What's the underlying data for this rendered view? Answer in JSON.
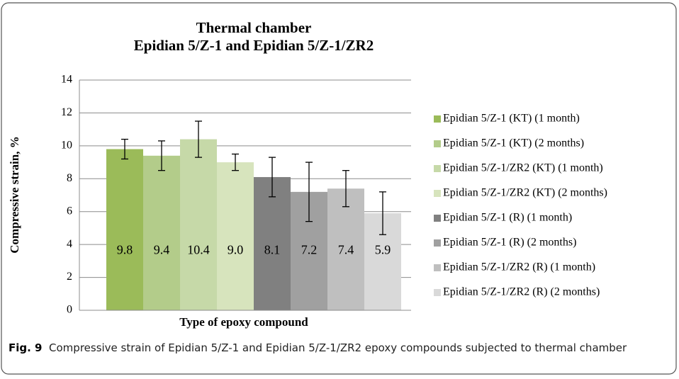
{
  "chart_data": {
    "type": "bar",
    "title": "Thermal chamber",
    "subtitle": "Epidian 5/Z-1 and Epidian 5/Z-1/ZR2",
    "x_label": "Type of epoxy compound",
    "y_label": "Compressive strain, %",
    "ylim": [
      0,
      14
    ],
    "yticks": [
      0,
      2,
      4,
      6,
      8,
      10,
      12,
      14
    ],
    "grid": true,
    "legend": "right",
    "series": [
      {
        "name": "Epidian 5/Z-1 (KT) (1 month)",
        "color": "#9bbb59",
        "values": [
          9.8
        ],
        "value_labels": [
          "9.8"
        ],
        "errors": [
          0.6
        ]
      },
      {
        "name": "Epidian 5/Z-1 (KT) (2 months)",
        "color": "#b3cc8a",
        "values": [
          9.4
        ],
        "value_labels": [
          "9.4"
        ],
        "errors": [
          0.9
        ]
      },
      {
        "name": "Epidian 5/Z-1/ZR2 (KT) (1 month)",
        "color": "#c6d9a8",
        "values": [
          10.4
        ],
        "value_labels": [
          "10.4"
        ],
        "errors": [
          1.1
        ]
      },
      {
        "name": "Epidian 5/Z-1/ZR2 (KT) (2 months)",
        "color": "#d7e4bd",
        "values": [
          9.0
        ],
        "value_labels": [
          "9.0"
        ],
        "errors": [
          0.5
        ]
      },
      {
        "name": "Epidian 5/Z-1 (R) (1 month)",
        "color": "#808080",
        "values": [
          8.1
        ],
        "value_labels": [
          "8.1"
        ],
        "errors": [
          1.2
        ]
      },
      {
        "name": "Epidian 5/Z-1 (R) (2 months)",
        "color": "#a0a0a0",
        "values": [
          7.2
        ],
        "value_labels": [
          "7.2"
        ],
        "errors": [
          1.8
        ]
      },
      {
        "name": "Epidian 5/Z-1/ZR2 (R) (1 month)",
        "color": "#bfbfbf",
        "values": [
          7.4
        ],
        "value_labels": [
          "7.4"
        ],
        "errors": [
          1.1
        ]
      },
      {
        "name": "Epidian 5/Z-1/ZR2 (R) (2 months)",
        "color": "#d9d9d9",
        "values": [
          5.9
        ],
        "value_labels": [
          "5.9"
        ],
        "errors": [
          1.3
        ]
      }
    ]
  },
  "caption": {
    "label": "Fig. 9",
    "text": "Compressive strain of Epidian 5/Z-1 and Epidian 5/Z-1/ZR2 epoxy compounds subjected to thermal chamber"
  }
}
